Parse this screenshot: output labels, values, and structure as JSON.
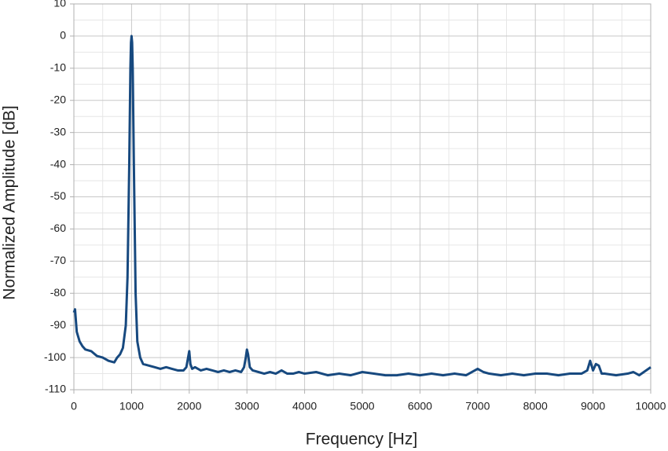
{
  "chart_data": {
    "type": "line",
    "xlabel": "Frequency [Hz]",
    "ylabel": "Normalized Amplitude [dB]",
    "x": [
      0,
      20,
      50,
      100,
      150,
      200,
      300,
      400,
      500,
      600,
      700,
      750,
      800,
      850,
      900,
      930,
      960,
      980,
      990,
      1000,
      1010,
      1020,
      1040,
      1070,
      1100,
      1150,
      1200,
      1300,
      1400,
      1500,
      1600,
      1700,
      1800,
      1900,
      1950,
      1980,
      2000,
      2020,
      2050,
      2100,
      2200,
      2300,
      2400,
      2500,
      2600,
      2700,
      2800,
      2900,
      2950,
      2980,
      3000,
      3020,
      3050,
      3100,
      3200,
      3300,
      3400,
      3500,
      3600,
      3700,
      3800,
      3900,
      4000,
      4200,
      4400,
      4600,
      4800,
      5000,
      5200,
      5400,
      5600,
      5800,
      6000,
      6200,
      6400,
      6600,
      6800,
      7000,
      7100,
      7200,
      7400,
      7600,
      7800,
      8000,
      8200,
      8400,
      8600,
      8800,
      8900,
      8950,
      9000,
      9050,
      9100,
      9150,
      9200,
      9400,
      9600,
      9700,
      9800,
      10000
    ],
    "series": [
      {
        "color": "#17497f",
        "values": [
          -86,
          -85,
          -92,
          -95,
          -96.5,
          -97.5,
          -98,
          -99.5,
          -100,
          -101,
          -101.5,
          -100,
          -99,
          -97,
          -90,
          -75,
          -40,
          -10,
          -2,
          0,
          -2,
          -10,
          -40,
          -80,
          -95,
          -100,
          -102,
          -102.5,
          -103,
          -103.5,
          -103,
          -103.5,
          -104,
          -104,
          -103,
          -100,
          -98,
          -102,
          -103.5,
          -103,
          -104,
          -103.5,
          -104,
          -104.5,
          -104,
          -104.5,
          -104,
          -104.5,
          -103,
          -100,
          -97.5,
          -99,
          -103,
          -104,
          -104.5,
          -105,
          -104.5,
          -105,
          -104,
          -105,
          -105,
          -104.5,
          -105,
          -104.5,
          -105.5,
          -105,
          -105.5,
          -104.5,
          -105,
          -105.5,
          -105.5,
          -105,
          -105.5,
          -105,
          -105.5,
          -105,
          -105.5,
          -103.5,
          -104.5,
          -105,
          -105.5,
          -105,
          -105.5,
          -105,
          -105,
          -105.5,
          -105,
          -105,
          -104,
          -101,
          -104,
          -102,
          -102.5,
          -105,
          -105,
          -105.5,
          -105,
          -104.5,
          -105.5,
          -103
        ]
      }
    ],
    "xlim": [
      0,
      10000
    ],
    "xticks": [
      0,
      1000,
      2000,
      3000,
      4000,
      5000,
      6000,
      7000,
      8000,
      9000,
      10000
    ],
    "ylim": [
      -110,
      10
    ],
    "yticks": [
      -110,
      -100,
      -90,
      -80,
      -70,
      -60,
      -50,
      -40,
      -30,
      -20,
      -10,
      0,
      10
    ],
    "grid": true,
    "minor_grid": true
  }
}
